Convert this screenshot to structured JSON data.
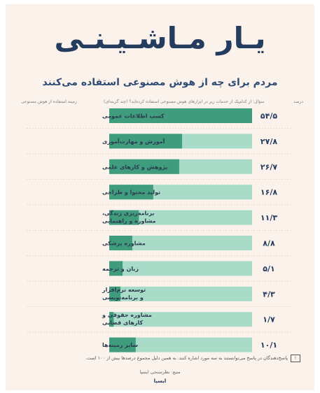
{
  "title": "یـار مـاشـیـنـی",
  "subtitle": "مردم برای چه از هوش مصنوعی استفاده می‌کنند",
  "headers": {
    "use_field": "زمینه استفاده از هوش مصنوعی",
    "question": "سؤال: از کدام‌یک از خدمات زیر در ابزارهای هوش مصنوعی استفاده کرده‌اید؟ (چند گزینه‌ای)",
    "percent": "درصد"
  },
  "footnote": "پاسخ‌دهندگان در پاسخ می‌توانستند به سه مورد اشاره کنند. به همین دلیل مجموع درصدها بیش از ۱۰۰ است.",
  "footnote_icon": "info-icon",
  "source": "منبع: نظرسنجی ایسپا",
  "logo": "ایسپا",
  "colors": {
    "bar_fill": "#3f9c7c",
    "bar_track": "#a9dcc8",
    "title": "#243c5e",
    "background": "#fbf2ec"
  },
  "chart_data": {
    "type": "bar",
    "orientation": "horizontal",
    "categories": [
      [
        "کسب اطلاعات عمومی"
      ],
      [
        "آموزش و مهارت‌آموزی"
      ],
      [
        "پژوهش و کارهای علمی"
      ],
      [
        "تولید محتوا و طراحی"
      ],
      [
        "برنامه‌ریزی زندگی،",
        "مشاوره و راهنمایی"
      ],
      [
        "مشاوره پزشکی"
      ],
      [
        "زبان و ترجمه"
      ],
      [
        "توسعه نرم‌افزار",
        "و برنامه‌نویسی"
      ],
      [
        "مشاوره حقوقی و",
        "کارهای قضایی"
      ],
      [
        "سایر زمینه‌ها"
      ]
    ],
    "values": [
      54.5,
      27.8,
      26.7,
      16.8,
      11.3,
      8.8,
      5.1,
      4.3,
      1.7,
      10.1
    ],
    "value_labels": [
      "۵۴/۵",
      "۲۷/۸",
      "۲۶/۷",
      "۱۶/۸",
      "۱۱/۳",
      "۸/۸",
      "۵/۱",
      "۴/۳",
      "۱/۷",
      "۱۰/۱"
    ],
    "xlim": [
      0,
      54.5
    ]
  }
}
